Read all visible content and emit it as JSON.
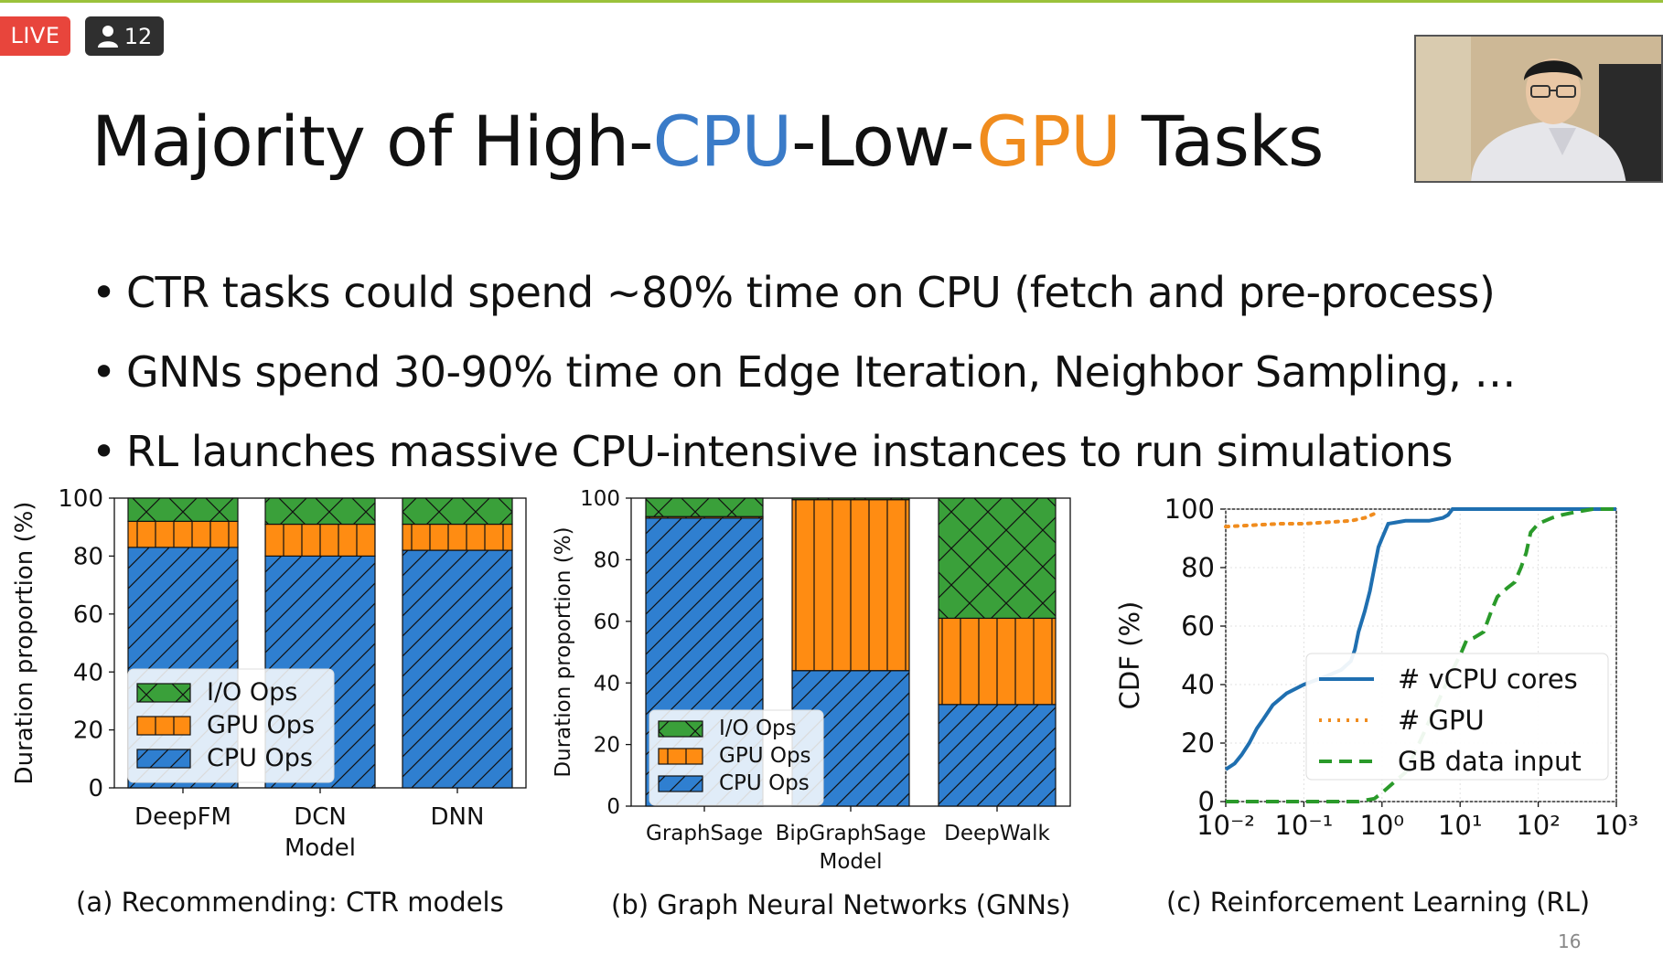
{
  "stream": {
    "live_label": "LIVE",
    "viewer_count": "12"
  },
  "slide": {
    "title_parts": [
      "Majority of High-",
      "CPU",
      "-Low-",
      "GPU",
      " Tasks"
    ],
    "bullets": [
      "CTR tasks could spend ~80% time on CPU (fetch and pre-process)",
      "GNNs spend 30-90% time on Edge Iteration, Neighbor Sampling, …",
      "RL launches massive CPU-intensive instances to run simulations"
    ],
    "captions": [
      "(a) Recommending: CTR models",
      "(b) Graph Neural Networks (GNNs)",
      "(c) Reinforcement Learning (RL)"
    ],
    "page_number": "16"
  },
  "colors": {
    "cpu": "#2f7fd0",
    "gpu": "#ff8c12",
    "io": "#3aa03a",
    "title_cpu": "#3a7bc8",
    "title_gpu": "#f08c1e"
  },
  "chart_data": [
    {
      "type": "bar",
      "stacked": true,
      "categories": [
        "DeepFM",
        "DCN",
        "DNN"
      ],
      "xlabel": "Model",
      "ylabel": "Duration proportion (%)",
      "ylim": [
        0,
        100
      ],
      "yticks": [
        0,
        20,
        40,
        60,
        80,
        100
      ],
      "legend": [
        "I/O Ops",
        "GPU Ops",
        "CPU Ops"
      ],
      "legend_placement": "lower-left",
      "series": [
        {
          "name": "CPU Ops",
          "values": [
            83,
            80,
            82
          ]
        },
        {
          "name": "GPU Ops",
          "values": [
            9,
            11,
            9
          ]
        },
        {
          "name": "I/O Ops",
          "values": [
            8,
            9,
            9
          ]
        }
      ]
    },
    {
      "type": "bar",
      "stacked": true,
      "categories": [
        "GraphSage",
        "BipGraphSage",
        "DeepWalk"
      ],
      "xlabel": "Model",
      "ylabel": "Duration proportion (%)",
      "ylim": [
        0,
        100
      ],
      "yticks": [
        0,
        20,
        40,
        60,
        80,
        100
      ],
      "legend": [
        "I/O Ops",
        "GPU Ops",
        "CPU Ops"
      ],
      "legend_placement": "lower-left",
      "series": [
        {
          "name": "CPU Ops",
          "values": [
            93.5,
            44,
            33
          ]
        },
        {
          "name": "GPU Ops",
          "values": [
            0.5,
            55.5,
            28
          ]
        },
        {
          "name": "I/O Ops",
          "values": [
            6,
            0.5,
            39
          ]
        }
      ]
    },
    {
      "type": "line",
      "xscale": "log",
      "xlim": [
        0.01,
        1000
      ],
      "xtick_labels": [
        "10⁻²",
        "10⁻¹",
        "10⁰",
        "10¹",
        "10²",
        "10³"
      ],
      "xtick_values": [
        0.01,
        0.1,
        1,
        10,
        100,
        1000
      ],
      "ylabel": "CDF (%)",
      "ylim": [
        0,
        100
      ],
      "yticks": [
        0,
        20,
        40,
        60,
        80,
        100
      ],
      "grid": true,
      "legend_placement": "lower-right",
      "series": [
        {
          "name": "# vCPU cores",
          "style": "solid",
          "color": "#1f6fb0",
          "x": [
            0.01,
            0.013,
            0.016,
            0.02,
            0.025,
            0.03,
            0.04,
            0.06,
            0.1,
            0.2,
            0.3,
            0.4,
            0.45,
            0.5,
            0.6,
            0.7,
            0.8,
            0.9,
            1.0,
            1.2,
            2,
            4,
            6,
            7,
            8,
            10,
            1000
          ],
          "y": [
            11,
            13,
            16,
            20,
            25,
            28,
            33,
            37,
            40,
            43,
            45,
            48,
            52,
            58,
            65,
            72,
            80,
            87,
            90,
            95,
            96,
            96,
            97,
            98,
            100,
            100,
            100
          ]
        },
        {
          "name": "# GPU",
          "style": "dotted",
          "color": "#f08c1e",
          "x": [
            0.01,
            0.05,
            0.1,
            0.2,
            0.4,
            0.6,
            0.9
          ],
          "y": [
            94,
            95,
            95,
            95.5,
            96,
            97,
            99
          ]
        },
        {
          "name": "GB data input",
          "style": "dashed",
          "color": "#2a9a2a",
          "x": [
            0.01,
            0.5,
            0.8,
            1.0,
            2,
            3,
            5,
            8,
            10,
            12,
            15,
            20,
            25,
            30,
            40,
            50,
            60,
            70,
            80,
            100,
            150,
            200,
            300,
            500,
            1000
          ],
          "y": [
            0,
            0,
            1,
            3,
            10,
            20,
            33,
            45,
            50,
            55,
            56,
            58,
            65,
            70,
            73,
            75,
            80,
            85,
            92,
            95,
            97,
            98,
            99,
            100,
            100
          ]
        }
      ]
    }
  ]
}
